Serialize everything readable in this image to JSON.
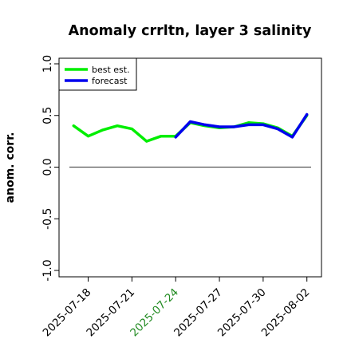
{
  "chart_data": {
    "type": "line",
    "title": "Anomaly crrltn, layer 3 salinity",
    "ylabel": "anom. corr.",
    "xlabel": "",
    "ylim": [
      -1.0,
      1.0
    ],
    "yticks": [
      "-1.0",
      "-0.5",
      "0.0",
      "0.5",
      "1.0"
    ],
    "ytick_values": [
      -1.0,
      -0.5,
      0.0,
      0.5,
      1.0
    ],
    "x_range": [
      "2025-07-16",
      "2025-08-03"
    ],
    "xticks": [
      {
        "label": "2025-07-18",
        "date": "2025-07-18",
        "color": "#000000"
      },
      {
        "label": "2025-07-21",
        "date": "2025-07-21",
        "color": "#000000"
      },
      {
        "label": "2025-07-24",
        "date": "2025-07-24",
        "color": "#228B22"
      },
      {
        "label": "2025-07-27",
        "date": "2025-07-27",
        "color": "#000000"
      },
      {
        "label": "2025-07-30",
        "date": "2025-07-30",
        "color": "#000000"
      },
      {
        "label": "2025-08-02",
        "date": "2025-08-02",
        "color": "#000000"
      }
    ],
    "reference_line": 0.0,
    "legend_position": "top-left",
    "series": [
      {
        "name": "best est.",
        "color": "#00ee00",
        "points": [
          {
            "x": "2025-07-17",
            "y": 0.4
          },
          {
            "x": "2025-07-18",
            "y": 0.3
          },
          {
            "x": "2025-07-19",
            "y": 0.36
          },
          {
            "x": "2025-07-20",
            "y": 0.4
          },
          {
            "x": "2025-07-21",
            "y": 0.37
          },
          {
            "x": "2025-07-22",
            "y": 0.25
          },
          {
            "x": "2025-07-23",
            "y": 0.3
          },
          {
            "x": "2025-07-24",
            "y": 0.3
          },
          {
            "x": "2025-07-25",
            "y": 0.43
          },
          {
            "x": "2025-07-26",
            "y": 0.4
          },
          {
            "x": "2025-07-27",
            "y": 0.38
          },
          {
            "x": "2025-07-28",
            "y": 0.39
          },
          {
            "x": "2025-07-29",
            "y": 0.43
          },
          {
            "x": "2025-07-30",
            "y": 0.42
          },
          {
            "x": "2025-07-31",
            "y": 0.38
          },
          {
            "x": "2025-08-01",
            "y": 0.3
          },
          {
            "x": "2025-08-02",
            "y": 0.5
          }
        ]
      },
      {
        "name": "forecast",
        "color": "#0000ee",
        "points": [
          {
            "x": "2025-07-24",
            "y": 0.29
          },
          {
            "x": "2025-07-25",
            "y": 0.44
          },
          {
            "x": "2025-07-26",
            "y": 0.41
          },
          {
            "x": "2025-07-27",
            "y": 0.39
          },
          {
            "x": "2025-07-28",
            "y": 0.39
          },
          {
            "x": "2025-07-29",
            "y": 0.41
          },
          {
            "x": "2025-07-30",
            "y": 0.41
          },
          {
            "x": "2025-07-31",
            "y": 0.37
          },
          {
            "x": "2025-08-01",
            "y": 0.29
          },
          {
            "x": "2025-08-02",
            "y": 0.51
          }
        ]
      }
    ]
  }
}
